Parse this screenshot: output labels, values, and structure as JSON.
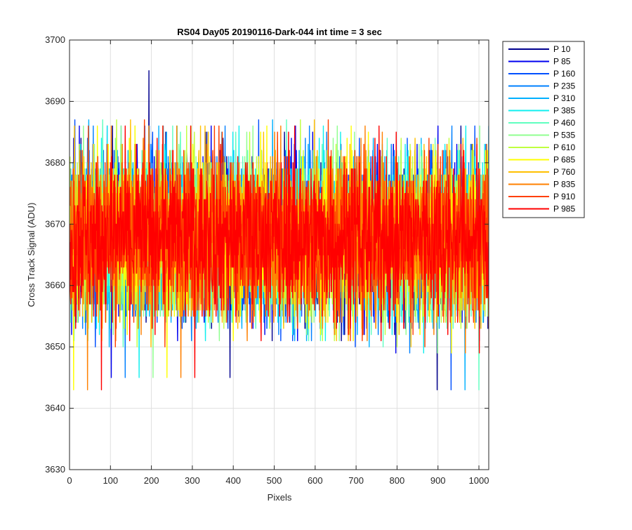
{
  "chart_data": {
    "type": "line",
    "title": "RS04 Day05 20190116-Dark-044 int time = 3 sec",
    "xlabel": "Pixels",
    "ylabel": "Cross Track Signal (ADU)",
    "xlim": [
      0,
      1024
    ],
    "ylim": [
      3630,
      3700
    ],
    "xticks": [
      0,
      100,
      200,
      300,
      400,
      500,
      600,
      700,
      800,
      900,
      1000
    ],
    "yticks": [
      3630,
      3640,
      3650,
      3660,
      3670,
      3680,
      3690,
      3700
    ],
    "grid": true,
    "legend_position": "outside-right-top",
    "noise_profile": {
      "points_per_series": 1024,
      "mean_approx": 3668,
      "typical_range": [
        3655,
        3682
      ],
      "description": "dense dark-frame noise traces overlapping across all pixels"
    },
    "series": [
      {
        "name": "P 10",
        "color": "#00008f"
      },
      {
        "name": "P 85",
        "color": "#0000ef"
      },
      {
        "name": "P 160",
        "color": "#0050ff"
      },
      {
        "name": "P 235",
        "color": "#0080ff"
      },
      {
        "name": "P 310",
        "color": "#00b0ff"
      },
      {
        "name": "P 385",
        "color": "#10efef"
      },
      {
        "name": "P 460",
        "color": "#60ffc0"
      },
      {
        "name": "P 535",
        "color": "#90ff90"
      },
      {
        "name": "P 610",
        "color": "#c0ff40"
      },
      {
        "name": "P 685",
        "color": "#ffff00"
      },
      {
        "name": "P 760",
        "color": "#ffc000"
      },
      {
        "name": "P 835",
        "color": "#ff8000"
      },
      {
        "name": "P 910",
        "color": "#ff4000"
      },
      {
        "name": "P 985",
        "color": "#ff0000"
      }
    ]
  }
}
